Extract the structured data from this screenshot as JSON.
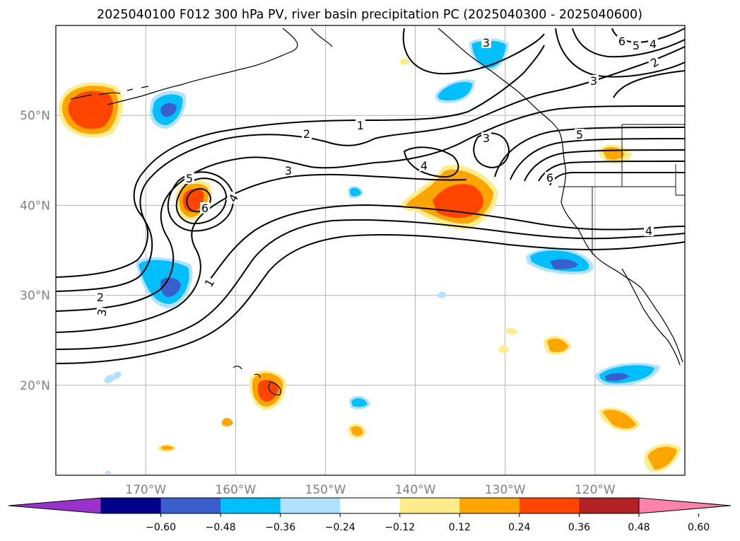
{
  "title": "2025040100 F012 300 hPa PV, river basin precipitation PC (2025040300 - 2025040600)",
  "map": {
    "projection": "cylindrical",
    "lon_range": [
      -180,
      -110
    ],
    "lat_range": [
      10,
      60
    ],
    "grid": true,
    "lon_tick_values": [
      -170,
      -160,
      -150,
      -140,
      -130,
      -120
    ],
    "lat_tick_values": [
      20,
      30,
      40,
      50
    ],
    "lon_ticks": [
      "170°W",
      "160°W",
      "150°W",
      "140°W",
      "130°W",
      "120°W"
    ],
    "lat_ticks": [
      "20°N",
      "30°N",
      "40°N",
      "50°N"
    ],
    "pv_contour_labels": [
      "1",
      "2",
      "3",
      "4",
      "5",
      "6"
    ]
  },
  "colorbar": {
    "ticks": [
      "−0.60",
      "−0.48",
      "−0.36",
      "−0.24",
      "−0.12",
      "0.12",
      "0.24",
      "0.36",
      "0.48",
      "0.60"
    ],
    "colors": [
      "#9932cc",
      "#00008b",
      "#3a5fcd",
      "#00bfff",
      "#b0e2ff",
      "#ffffff",
      "#ffec8b",
      "#ffa500",
      "#ff4500",
      "#b22222",
      "#ff82ab"
    ],
    "extend": "both"
  }
}
